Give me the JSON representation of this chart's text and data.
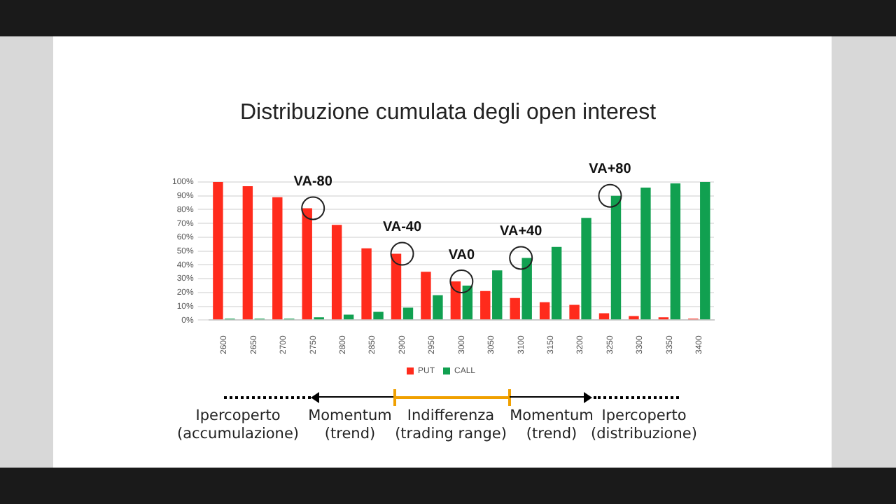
{
  "chart_data": {
    "type": "bar",
    "title": "Distribuzione cumulata degli open interest",
    "categories": [
      "2600",
      "2650",
      "2700",
      "2750",
      "2800",
      "2850",
      "2900",
      "2950",
      "3000",
      "3050",
      "3100",
      "3150",
      "3200",
      "3250",
      "3300",
      "3350",
      "3400"
    ],
    "series": [
      {
        "name": "PUT",
        "color": "#ff2b1c",
        "values": [
          100,
          97,
          89,
          81,
          69,
          52,
          48,
          35,
          28,
          21,
          16,
          13,
          11,
          5,
          3,
          2,
          1
        ]
      },
      {
        "name": "CALL",
        "color": "#11a050",
        "values": [
          1,
          1,
          1,
          2,
          4,
          6,
          9,
          18,
          25,
          36,
          45,
          53,
          74,
          90,
          96,
          99,
          100
        ]
      }
    ],
    "ylim": [
      0,
      100
    ],
    "yticks": [
      {
        "value": 0,
        "label": "0%"
      },
      {
        "value": 10,
        "label": "10%"
      },
      {
        "value": 20,
        "label": "20%"
      },
      {
        "value": 30,
        "label": "30%"
      },
      {
        "value": 40,
        "label": "40%"
      },
      {
        "value": 50,
        "label": "50%"
      },
      {
        "value": 60,
        "label": "60%"
      },
      {
        "value": 70,
        "label": "70%"
      },
      {
        "value": 80,
        "label": "80%"
      },
      {
        "value": 90,
        "label": "90%"
      },
      {
        "value": 100,
        "label": "100%"
      }
    ],
    "grid": "y",
    "legend": "bottom",
    "annotations": [
      {
        "text": "VA-80",
        "x": "2750",
        "y": 81
      },
      {
        "text": "VA-40",
        "x": "2900",
        "y": 48
      },
      {
        "text": "VA0",
        "x": "3000",
        "y": 28
      },
      {
        "text": "VA+40",
        "x": "3100",
        "y": 45
      },
      {
        "text": "VA+80",
        "x": "3250",
        "y": 90
      },
      "Ipercoperto\n(accumulazione)",
      "Momentum\n(trend)",
      "Indifferenza\n(trading range)",
      "Momentum\n(trend)",
      "Ipercoperto\n(distribuzione)"
    ]
  }
}
